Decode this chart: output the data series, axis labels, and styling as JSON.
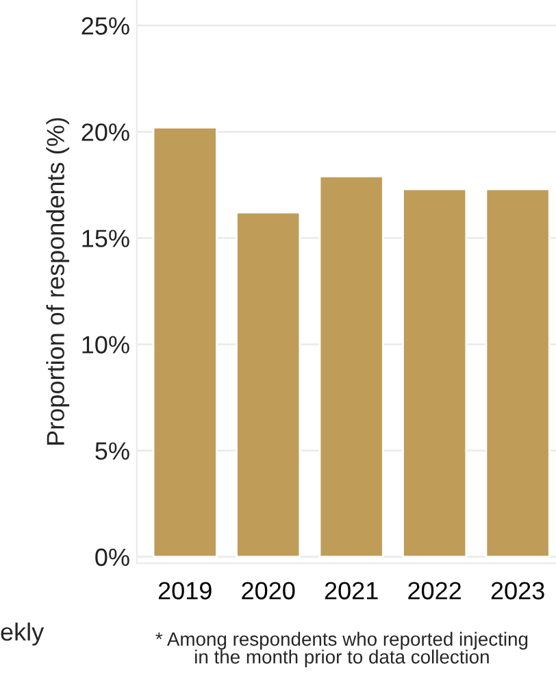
{
  "chart_data": {
    "type": "bar",
    "ylabel": "Proportion of respondents (%)",
    "categories": [
      "2019",
      "2020",
      "2021",
      "2022",
      "2023"
    ],
    "series": [
      {
        "color": "#bf9c58",
        "values": [
          20.2,
          16.2,
          17.9,
          17.3,
          17.3
        ]
      }
    ],
    "ylim": [
      -0.3,
      26.2
    ],
    "yticks": [
      {
        "value": 0,
        "label": "0%"
      },
      {
        "value": 5,
        "label": "5%"
      },
      {
        "value": 10,
        "label": "10%"
      },
      {
        "value": 15,
        "label": "15%"
      },
      {
        "value": 20,
        "label": "20%"
      },
      {
        "value": 25,
        "label": "25%"
      }
    ],
    "grid": "y",
    "legend": false,
    "annotations": [
      "ekly",
      "* Among respondents who reported injecting\nin the month prior to data collection"
    ]
  }
}
